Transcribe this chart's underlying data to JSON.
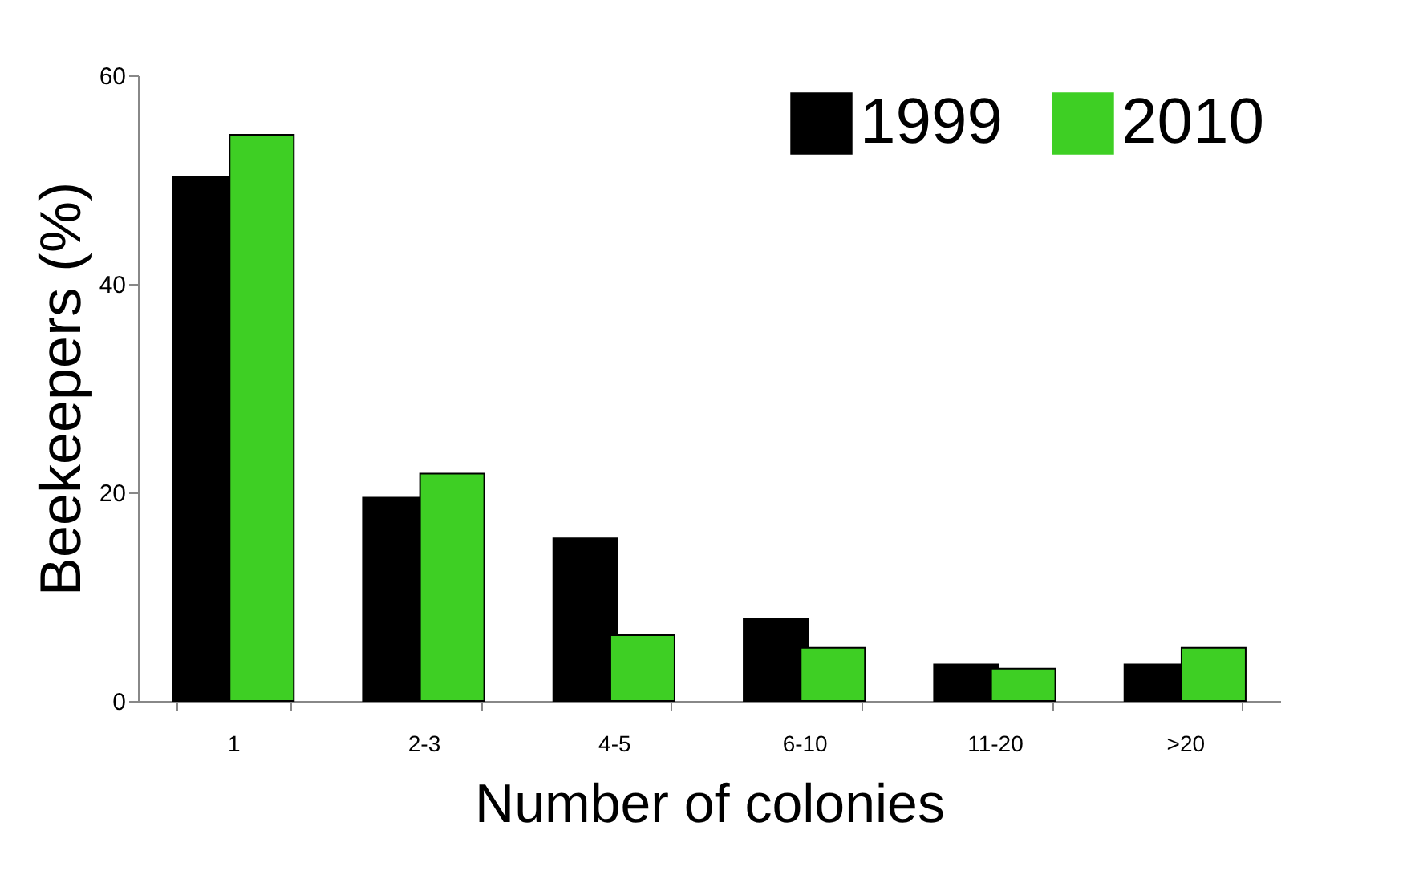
{
  "chart_data": {
    "type": "bar",
    "xlabel": "Number of colonies",
    "ylabel": "Beekeepers (%)",
    "categories": [
      "1",
      "2-3",
      "4-5",
      "6-10",
      "11-20",
      ">20"
    ],
    "series": [
      {
        "name": "1999",
        "color": "#000000",
        "values": [
          50.3,
          19.5,
          15.6,
          7.9,
          3.5,
          3.5
        ]
      },
      {
        "name": "2010",
        "color": "#3ecf24",
        "values": [
          54.3,
          21.8,
          6.3,
          5.1,
          3.1,
          5.1
        ]
      }
    ],
    "ylim": [
      0,
      60
    ],
    "yticks": [
      0,
      20,
      40,
      60
    ],
    "grid": false,
    "legend": "top right"
  }
}
